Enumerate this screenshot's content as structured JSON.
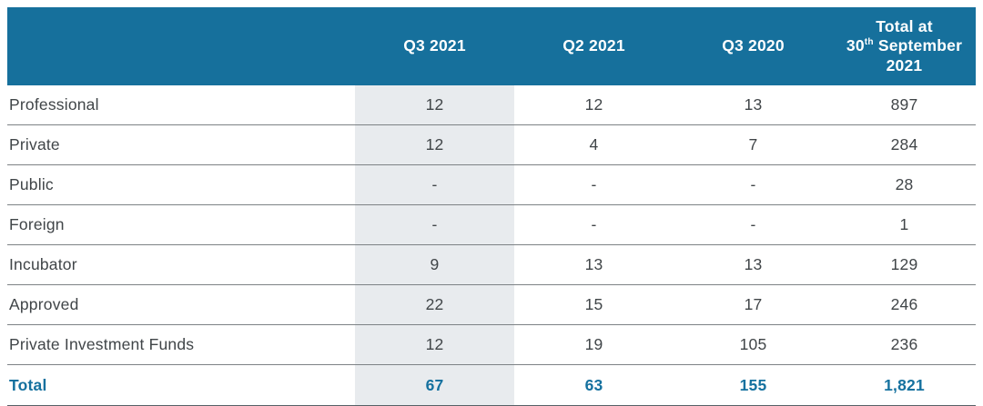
{
  "header": {
    "cols": [
      {
        "label": "Q3 2021"
      },
      {
        "label": "Q2 2021"
      },
      {
        "label": "Q3 2020"
      }
    ],
    "total_col": {
      "line1": "Total at",
      "day": "30",
      "ordinal": "th",
      "month": " September",
      "line3": "2021"
    }
  },
  "table": {
    "rows": [
      {
        "label": "Professional",
        "values": [
          "12",
          "12",
          "13",
          "897"
        ]
      },
      {
        "label": "Private",
        "values": [
          "12",
          "4",
          "7",
          "284"
        ]
      },
      {
        "label": "Public",
        "values": [
          "-",
          "-",
          "-",
          "28"
        ]
      },
      {
        "label": "Foreign",
        "values": [
          "-",
          "-",
          "-",
          "1"
        ]
      },
      {
        "label": "Incubator",
        "values": [
          "9",
          "13",
          "13",
          "129"
        ]
      },
      {
        "label": "Approved",
        "values": [
          "22",
          "15",
          "17",
          "246"
        ]
      },
      {
        "label": "Private Investment Funds",
        "values": [
          "12",
          "19",
          "105",
          "236"
        ]
      },
      {
        "label": "Total",
        "values": [
          "67",
          "63",
          "155",
          "1,821"
        ]
      }
    ]
  },
  "colors": {
    "header_bg": "#16709c",
    "header_text": "#ffffff",
    "highlight_col_bg": "#e8ebee",
    "body_text": "#404548",
    "row_divider": "#7d8285",
    "total_text": "#15719f",
    "bottom_border": "#566066"
  },
  "chart_data": {
    "type": "table",
    "title": "",
    "columns": [
      "",
      "Q3 2021",
      "Q2 2021",
      "Q3 2020",
      "Total at 30th September 2021"
    ],
    "highlighted_column": "Q3 2021",
    "rows": [
      [
        "Professional",
        "12",
        "12",
        "13",
        "897"
      ],
      [
        "Private",
        "12",
        "4",
        "7",
        "284"
      ],
      [
        "Public",
        "-",
        "-",
        "-",
        "28"
      ],
      [
        "Foreign",
        "-",
        "-",
        "-",
        "1"
      ],
      [
        "Incubator",
        "9",
        "13",
        "13",
        "129"
      ],
      [
        "Approved",
        "22",
        "15",
        "17",
        "246"
      ],
      [
        "Private Investment Funds",
        "12",
        "19",
        "105",
        "236"
      ],
      [
        "Total",
        "67",
        "63",
        "155",
        "1,821"
      ]
    ]
  }
}
